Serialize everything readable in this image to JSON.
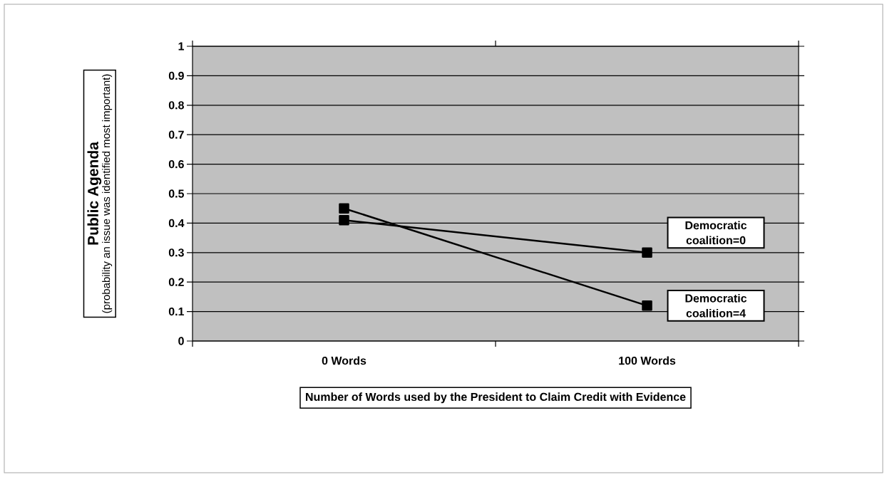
{
  "chart_data": {
    "type": "line",
    "categories": [
      "0 Words",
      "100 Words"
    ],
    "series": [
      {
        "name": "Democratic coalition=0",
        "color": "#000000",
        "values": [
          0.41,
          0.3
        ]
      },
      {
        "name": "Democratic coalition=4",
        "color": "#000000",
        "values": [
          0.45,
          0.12
        ]
      }
    ],
    "ylim": [
      0,
      1
    ],
    "yticks": [
      0,
      0.1,
      0.2,
      0.3,
      0.4,
      0.5,
      0.6,
      0.7,
      0.8,
      0.9,
      1
    ],
    "grid": "y",
    "marker": "square",
    "line_style": "solid",
    "legend": false,
    "xlabel": "Number of Words used by the President to Claim Credit with Evidence",
    "ylabel": "Public Agenda",
    "annotations": [
      "(probability an issue was identified most important)"
    ]
  }
}
